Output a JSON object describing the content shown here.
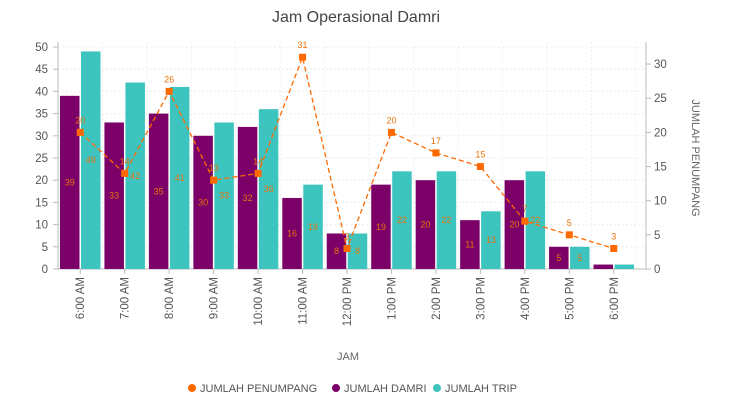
{
  "chart_data": {
    "type": "bar",
    "title": "Jam Operasional Damri",
    "xlabel": "JAM",
    "ylabel_right": "JUMLAH PENUMPANG",
    "categories": [
      "6:00 AM",
      "7:00 AM",
      "8:00 AM",
      "9:00 AM",
      "10:00 AM",
      "11:00 AM",
      "12:00 PM",
      "1:00 PM",
      "2:00 PM",
      "3:00 PM",
      "4:00 PM",
      "5:00 PM",
      "6:00 PM"
    ],
    "ylim_left": [
      0,
      50
    ],
    "yticks_left": [
      0,
      5,
      10,
      15,
      20,
      25,
      30,
      35,
      40,
      45,
      50
    ],
    "ylim_right": [
      0,
      32.5
    ],
    "yticks_right": [
      0,
      5,
      10,
      15,
      20,
      25,
      30
    ],
    "grid": true,
    "legend_position": "bottom",
    "series": [
      {
        "name": "JUMLAH PENUMPANG",
        "kind": "line",
        "axis": "right",
        "color": "#ff6a00",
        "values": [
          20,
          14,
          26,
          13,
          14,
          31,
          3,
          20,
          17,
          15,
          7,
          5,
          3
        ]
      },
      {
        "name": "JUMLAH DAMRI",
        "kind": "bar",
        "axis": "left",
        "color": "#7b0068",
        "values": [
          39,
          33,
          35,
          30,
          32,
          16,
          8,
          19,
          20,
          11,
          20,
          5,
          1
        ]
      },
      {
        "name": "JUMLAH TRIP",
        "kind": "bar",
        "axis": "left",
        "color": "#3ec4bf",
        "values": [
          49,
          42,
          41,
          33,
          36,
          19,
          8,
          22,
          22,
          13,
          22,
          5,
          1
        ]
      }
    ],
    "data_labels": {
      "line": [
        "20",
        "14",
        "26",
        "13",
        "14",
        "31",
        "3",
        "20",
        "17",
        "15",
        "7",
        "5",
        "3"
      ],
      "damri": [
        "39",
        "33",
        "35",
        "30",
        "32",
        "16",
        "8",
        "19",
        "20",
        "11",
        "20",
        "5",
        ""
      ],
      "trip": [
        "49",
        "42",
        "41",
        "33",
        "36",
        "19",
        "8",
        "22",
        "22",
        "13",
        "22",
        "5",
        ""
      ]
    }
  }
}
